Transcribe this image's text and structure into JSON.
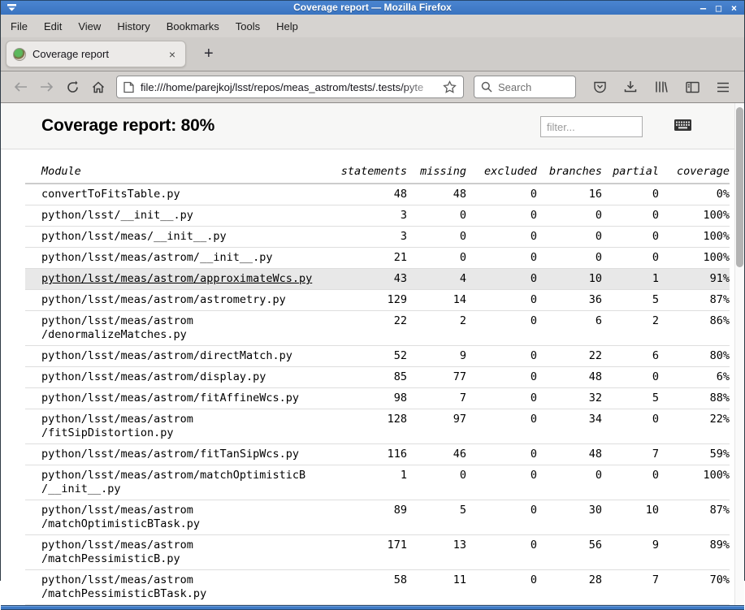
{
  "window": {
    "title": "Coverage report — Mozilla Firefox",
    "minimize": "–",
    "maximize": "□",
    "close": "×"
  },
  "menubar": {
    "items": [
      "File",
      "Edit",
      "View",
      "History",
      "Bookmarks",
      "Tools",
      "Help"
    ]
  },
  "tabbar": {
    "tab_label": "Coverage report",
    "tab_close": "×",
    "new_tab": "+"
  },
  "navbar": {
    "url": "file:///home/parejkoj/lsst/repos/meas_astrom/tests/.tests/pyte",
    "search_placeholder": "Search"
  },
  "page": {
    "heading": "Coverage report: 80%",
    "filter_placeholder": "filter...",
    "table": {
      "columns": [
        "Module",
        "statements",
        "missing",
        "excluded",
        "branches",
        "partial",
        "coverage"
      ],
      "rows": [
        {
          "module": "convertToFitsTable.py",
          "values": [
            "48",
            "48",
            "0",
            "16",
            "0",
            "0%"
          ],
          "highlighted": false
        },
        {
          "module": "python/lsst/__init__.py",
          "values": [
            "3",
            "0",
            "0",
            "0",
            "0",
            "100%"
          ],
          "highlighted": false
        },
        {
          "module": "python/lsst/meas/__init__.py",
          "values": [
            "3",
            "0",
            "0",
            "0",
            "0",
            "100%"
          ],
          "highlighted": false
        },
        {
          "module": "python/lsst/meas/astrom/__init__.py",
          "values": [
            "21",
            "0",
            "0",
            "0",
            "0",
            "100%"
          ],
          "highlighted": false
        },
        {
          "module": "python/lsst/meas/astrom/approximateWcs.py",
          "values": [
            "43",
            "4",
            "0",
            "10",
            "1",
            "91%"
          ],
          "highlighted": true
        },
        {
          "module": "python/lsst/meas/astrom/astrometry.py",
          "values": [
            "129",
            "14",
            "0",
            "36",
            "5",
            "87%"
          ],
          "highlighted": false
        },
        {
          "module": "python/lsst/meas/astrom\n/denormalizeMatches.py",
          "values": [
            "22",
            "2",
            "0",
            "6",
            "2",
            "86%"
          ],
          "highlighted": false
        },
        {
          "module": "python/lsst/meas/astrom/directMatch.py",
          "values": [
            "52",
            "9",
            "0",
            "22",
            "6",
            "80%"
          ],
          "highlighted": false
        },
        {
          "module": "python/lsst/meas/astrom/display.py",
          "values": [
            "85",
            "77",
            "0",
            "48",
            "0",
            "6%"
          ],
          "highlighted": false
        },
        {
          "module": "python/lsst/meas/astrom/fitAffineWcs.py",
          "values": [
            "98",
            "7",
            "0",
            "32",
            "5",
            "88%"
          ],
          "highlighted": false
        },
        {
          "module": "python/lsst/meas/astrom\n/fitSipDistortion.py",
          "values": [
            "128",
            "97",
            "0",
            "34",
            "0",
            "22%"
          ],
          "highlighted": false
        },
        {
          "module": "python/lsst/meas/astrom/fitTanSipWcs.py",
          "values": [
            "116",
            "46",
            "0",
            "48",
            "7",
            "59%"
          ],
          "highlighted": false
        },
        {
          "module": "python/lsst/meas/astrom/matchOptimisticB\n/__init__.py",
          "values": [
            "1",
            "0",
            "0",
            "0",
            "0",
            "100%"
          ],
          "highlighted": false
        },
        {
          "module": "python/lsst/meas/astrom\n/matchOptimisticBTask.py",
          "values": [
            "89",
            "5",
            "0",
            "30",
            "10",
            "87%"
          ],
          "highlighted": false
        },
        {
          "module": "python/lsst/meas/astrom\n/matchPessimisticB.py",
          "values": [
            "171",
            "13",
            "0",
            "56",
            "9",
            "89%"
          ],
          "highlighted": false
        },
        {
          "module": "python/lsst/meas/astrom\n/matchPessimisticBTask.py",
          "values": [
            "58",
            "11",
            "0",
            "28",
            "7",
            "70%"
          ],
          "highlighted": false
        }
      ]
    }
  },
  "colors": {
    "titlebar_blue": "#3e7ac6",
    "chrome_gray": "#d4d1ce",
    "row_highlight": "#e8e8e8"
  }
}
